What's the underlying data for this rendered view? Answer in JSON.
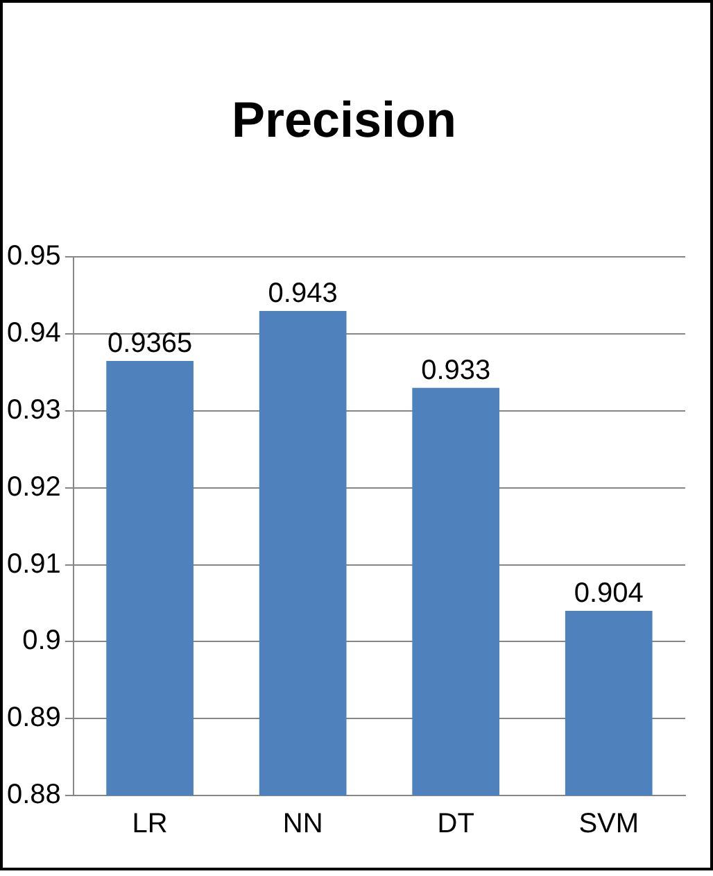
{
  "chart_data": {
    "type": "bar",
    "title": "Precision",
    "categories": [
      "LR",
      "NN",
      "DT",
      "SVM"
    ],
    "values": [
      0.9365,
      0.943,
      0.933,
      0.904
    ],
    "color": "#4f81bd",
    "ylim": [
      0.88,
      0.95
    ],
    "yticks": [
      0.88,
      0.89,
      0.9,
      0.91,
      0.92,
      0.93,
      0.94,
      0.95
    ],
    "grid": "y",
    "data_labels": true,
    "legend": false
  }
}
